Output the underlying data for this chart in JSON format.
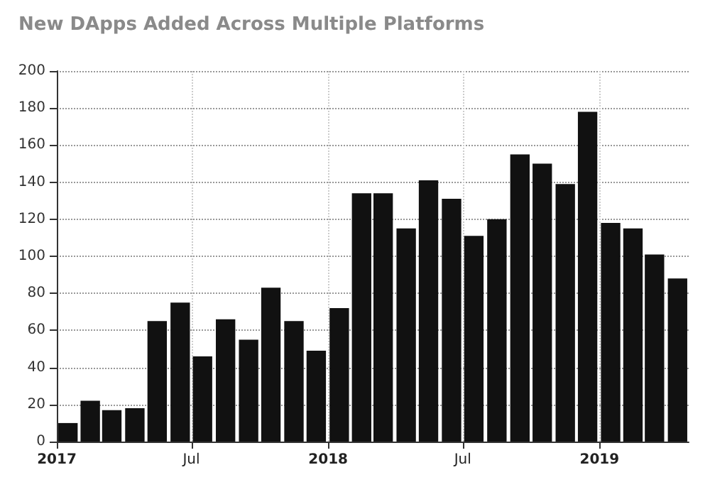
{
  "chart_data": {
    "type": "bar",
    "title": "New DApps Added Across Multiple Platforms",
    "x": [
      "2017-01-16",
      "2017-02-15",
      "2017-03-16",
      "2017-04-16",
      "2017-05-16",
      "2017-06-16",
      "2017-07-16",
      "2017-08-16",
      "2017-09-16",
      "2017-10-16",
      "2017-11-16",
      "2017-12-16",
      "2018-01-16",
      "2018-02-15",
      "2018-03-16",
      "2018-04-16",
      "2018-05-16",
      "2018-06-16",
      "2018-07-16",
      "2018-08-16",
      "2018-09-16",
      "2018-10-16",
      "2018-11-16",
      "2018-12-16",
      "2019-01-16",
      "2019-02-15",
      "2019-03-16",
      "2019-04-16"
    ],
    "values": [
      10,
      22,
      17,
      18,
      65,
      75,
      46,
      66,
      55,
      83,
      65,
      49,
      72,
      134,
      134,
      115,
      141,
      131,
      111,
      120,
      155,
      150,
      139,
      178,
      118,
      115,
      101,
      88
    ],
    "color": "#111111",
    "xlim": [
      "2017-01-01",
      "2019-05-01"
    ],
    "xticks": [
      {
        "value": "2017-01-01",
        "label": "2017"
      },
      {
        "value": "2017-07-01",
        "label": "Jul"
      },
      {
        "value": "2018-01-01",
        "label": "2018"
      },
      {
        "value": "2018-07-01",
        "label": "Jul"
      },
      {
        "value": "2019-01-01",
        "label": "2019"
      }
    ],
    "ylim": [
      0,
      200
    ],
    "yticks": [
      0,
      20,
      40,
      60,
      80,
      100,
      120,
      140,
      160,
      180,
      200
    ],
    "grid": true
  }
}
